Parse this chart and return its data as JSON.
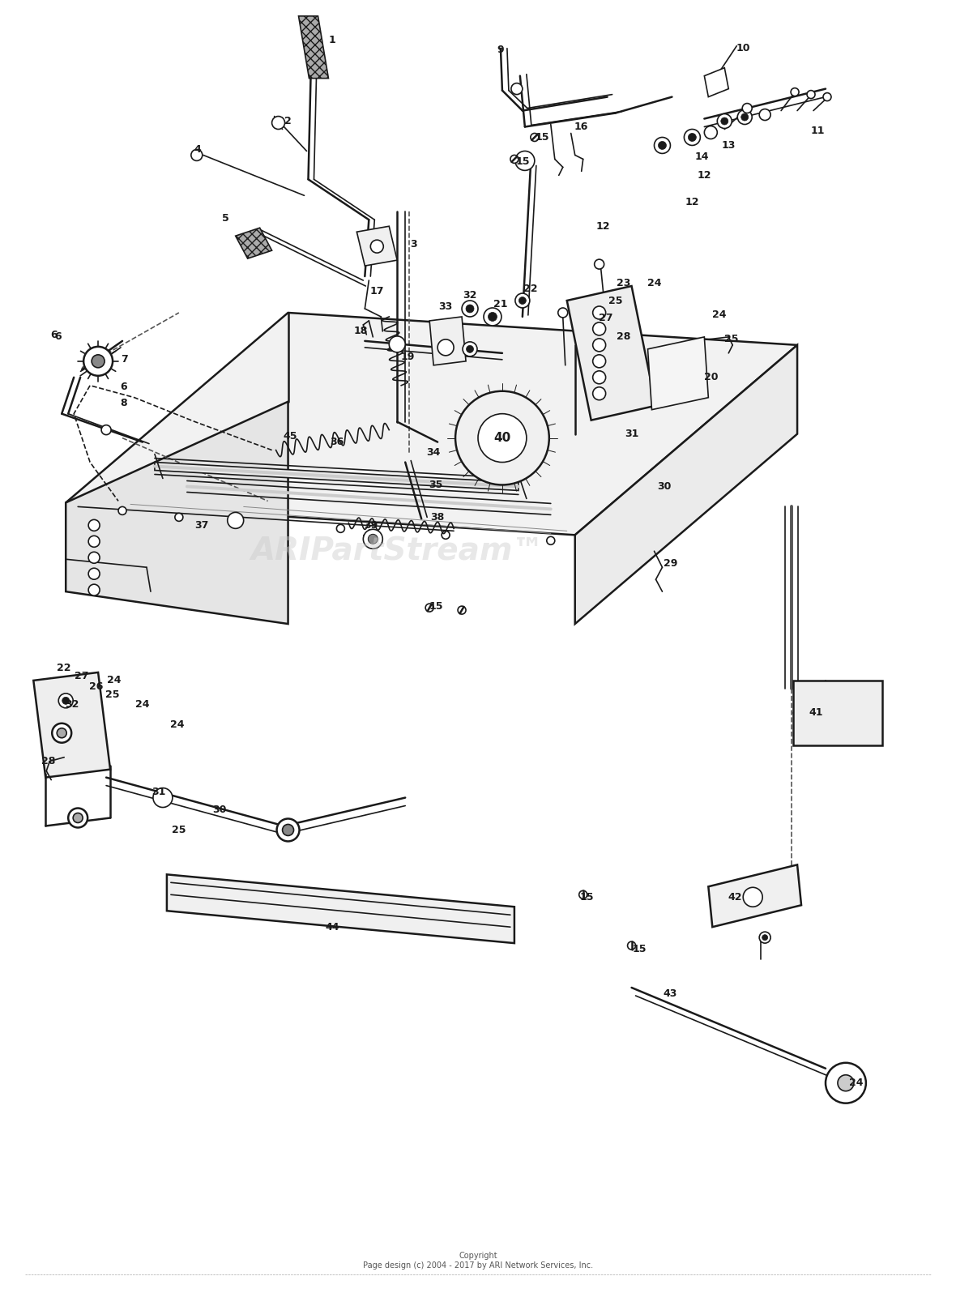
{
  "background_color": "#ffffff",
  "watermark": "ARIPartStream",
  "watermark_tm": "™",
  "copyright": "Copyright\nPage design (c) 2004 - 2017 by ARI Network Services, Inc.",
  "fig_width": 11.8,
  "fig_height": 15.91,
  "dpi": 100
}
